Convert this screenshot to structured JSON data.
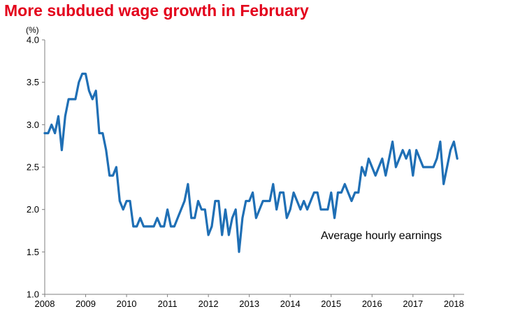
{
  "title": "More subdued wage growth in February",
  "chart_data": {
    "type": "line",
    "title": "More subdued wage growth in February",
    "ylabel": "(%)",
    "xlabel": "",
    "ylim": [
      1.0,
      4.0
    ],
    "xlim": [
      2008,
      2018.25
    ],
    "y_ticks": [
      "1.0",
      "1.5",
      "2.0",
      "2.5",
      "3.0",
      "3.5",
      "4.0"
    ],
    "x_ticks": [
      "2008",
      "2009",
      "2010",
      "2011",
      "2012",
      "2013",
      "2014",
      "2015",
      "2016",
      "2017",
      "2018"
    ],
    "grid": false,
    "legend": "none",
    "color": "#1f6fb5",
    "annotation": "Average hourly earnings",
    "series": [
      {
        "name": "Average hourly earnings",
        "start": "2008-01",
        "frequency": "monthly",
        "values": [
          2.9,
          2.9,
          3.0,
          2.9,
          3.1,
          2.7,
          3.1,
          3.3,
          3.3,
          3.3,
          3.5,
          3.6,
          3.6,
          3.4,
          3.3,
          3.4,
          2.9,
          2.9,
          2.7,
          2.4,
          2.4,
          2.5,
          2.1,
          2.0,
          2.1,
          2.1,
          1.8,
          1.8,
          1.9,
          1.8,
          1.8,
          1.8,
          1.8,
          1.9,
          1.8,
          1.8,
          2.0,
          1.8,
          1.8,
          1.9,
          2.0,
          2.1,
          2.3,
          1.9,
          1.9,
          2.1,
          2.0,
          2.0,
          1.7,
          1.8,
          2.1,
          2.1,
          1.7,
          2.0,
          1.7,
          1.9,
          2.0,
          1.5,
          1.9,
          2.1,
          2.1,
          2.2,
          1.9,
          2.0,
          2.1,
          2.1,
          2.1,
          2.3,
          2.0,
          2.2,
          2.2,
          1.9,
          2.0,
          2.2,
          2.1,
          2.0,
          2.1,
          2.0,
          2.1,
          2.2,
          2.2,
          2.0,
          2.0,
          2.0,
          2.2,
          1.9,
          2.2,
          2.2,
          2.3,
          2.2,
          2.1,
          2.2,
          2.2,
          2.5,
          2.4,
          2.6,
          2.5,
          2.4,
          2.5,
          2.6,
          2.4,
          2.6,
          2.8,
          2.5,
          2.6,
          2.7,
          2.6,
          2.7,
          2.4,
          2.7,
          2.6,
          2.5,
          2.5,
          2.5,
          2.5,
          2.6,
          2.8,
          2.3,
          2.5,
          2.7,
          2.8,
          2.6
        ]
      }
    ]
  }
}
